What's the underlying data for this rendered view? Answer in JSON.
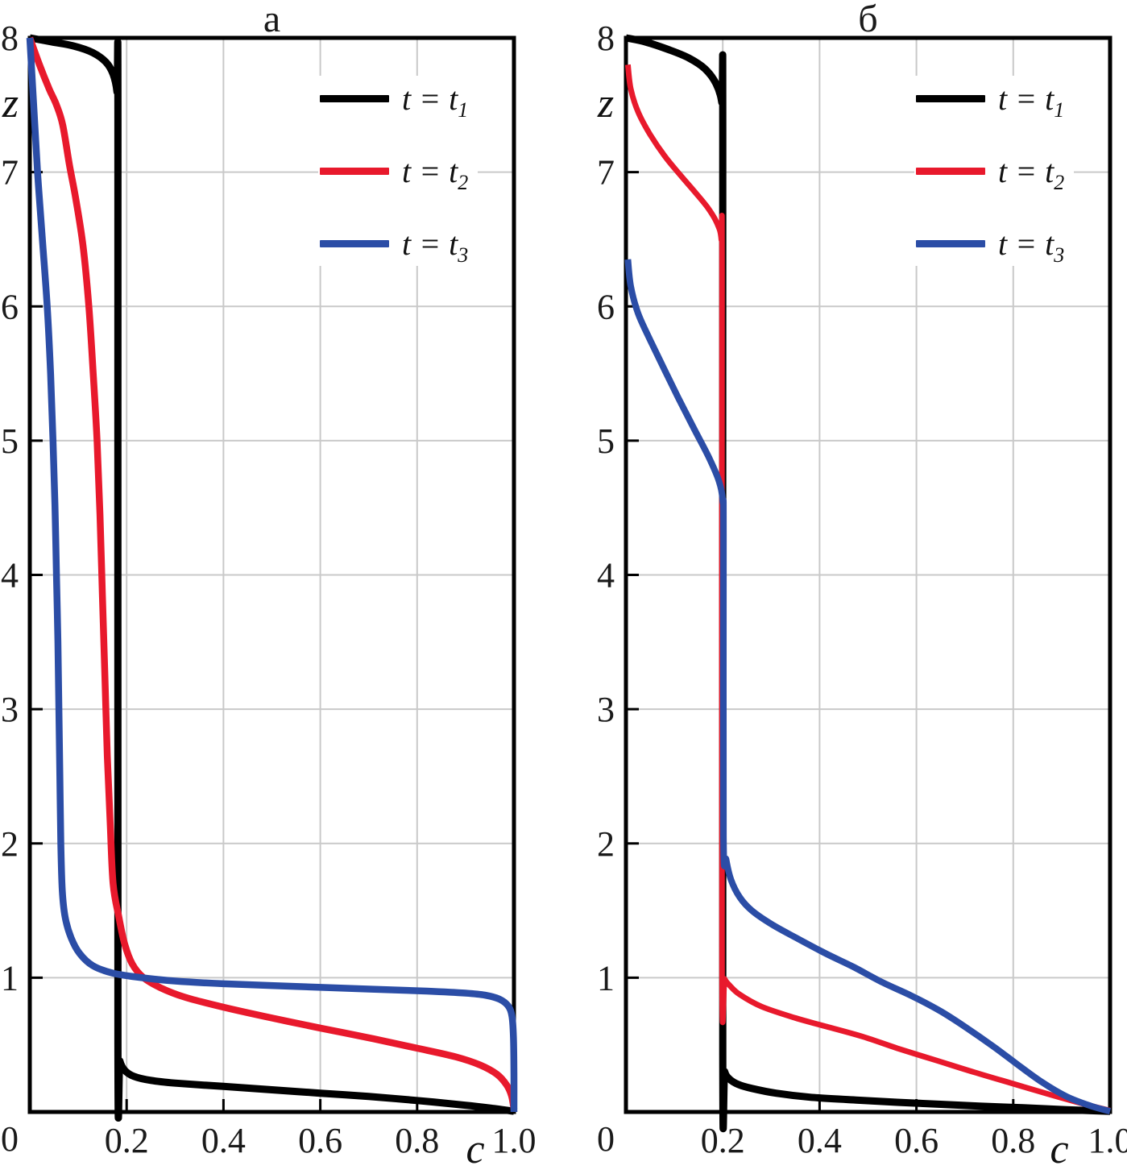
{
  "colors": {
    "black": "#000000",
    "red": "#e8192c",
    "blue": "#2b4da6",
    "grid": "#c9c9c9",
    "frame": "#000000",
    "background": "#ffffff"
  },
  "plots": [
    {
      "title": "а",
      "x_axis_label": "c",
      "y_axis_label": "z",
      "origin_label": "0",
      "x_ticks": [
        {
          "value": 0.2,
          "label": "0.2"
        },
        {
          "value": 0.4,
          "label": "0.4"
        },
        {
          "value": 0.6,
          "label": "0.6"
        },
        {
          "value": 0.8,
          "label": "0.8"
        },
        {
          "value": 1.0,
          "label": "1.0"
        }
      ],
      "y_ticks": [
        {
          "value": 8,
          "label": "8"
        },
        {
          "value": 7,
          "label": "7"
        },
        {
          "value": 6,
          "label": "6"
        },
        {
          "value": 5,
          "label": "5"
        },
        {
          "value": 4,
          "label": "4"
        },
        {
          "value": 3,
          "label": "3"
        },
        {
          "value": 2,
          "label": "2"
        },
        {
          "value": 1,
          "label": "1"
        }
      ],
      "legend": [
        {
          "label_prefix": "t = t",
          "label_sub": "1",
          "color": "#000000"
        },
        {
          "label_prefix": "t = t",
          "label_sub": "2",
          "color": "#e8192c"
        },
        {
          "label_prefix": "t = t",
          "label_sub": "3",
          "color": "#2b4da6"
        }
      ]
    },
    {
      "title": "б",
      "x_axis_label": "c",
      "y_axis_label": "z",
      "origin_label": "0",
      "x_ticks": [
        {
          "value": 0.2,
          "label": "0.2"
        },
        {
          "value": 0.4,
          "label": "0.4"
        },
        {
          "value": 0.6,
          "label": "0.6"
        },
        {
          "value": 0.8,
          "label": "0.8"
        },
        {
          "value": 1.0,
          "label": "1.0"
        }
      ],
      "y_ticks": [
        {
          "value": 8,
          "label": "8"
        },
        {
          "value": 7,
          "label": "7"
        },
        {
          "value": 6,
          "label": "6"
        },
        {
          "value": 5,
          "label": "5"
        },
        {
          "value": 4,
          "label": "4"
        },
        {
          "value": 3,
          "label": "3"
        },
        {
          "value": 2,
          "label": "2"
        },
        {
          "value": 1,
          "label": "1"
        }
      ],
      "legend": [
        {
          "label_prefix": "t = t",
          "label_sub": "1",
          "color": "#000000"
        },
        {
          "label_prefix": "t = t",
          "label_sub": "2",
          "color": "#e8192c"
        },
        {
          "label_prefix": "t = t",
          "label_sub": "3",
          "color": "#2b4da6"
        }
      ]
    }
  ],
  "chart_data": [
    {
      "type": "line",
      "title": "а",
      "xlabel": "c",
      "ylabel": "z",
      "xlim": [
        0,
        1.0
      ],
      "ylim": [
        0,
        8
      ],
      "x_tick_values": [
        0.2,
        0.4,
        0.6,
        0.8,
        1.0
      ],
      "y_tick_values": [
        0,
        1,
        2,
        3,
        4,
        5,
        6,
        7,
        8
      ],
      "grid": true,
      "legend_position": "upper right",
      "series": [
        {
          "name": "t = t₁",
          "color": "#000000",
          "points": [
            [
              0,
              8
            ],
            [
              0.045,
              7.97
            ],
            [
              0.09,
              7.94
            ],
            [
              0.13,
              7.89
            ],
            [
              0.157,
              7.82
            ],
            [
              0.172,
              7.73
            ],
            [
              0.18,
              7.6
            ],
            [
              0.182,
              7.4
            ],
            [
              0.182,
              0.5
            ],
            [
              0.186,
              0.38
            ],
            [
              0.196,
              0.31
            ],
            [
              0.215,
              0.265
            ],
            [
              0.25,
              0.235
            ],
            [
              0.3,
              0.215
            ],
            [
              0.4,
              0.19
            ],
            [
              0.5,
              0.165
            ],
            [
              0.6,
              0.14
            ],
            [
              0.7,
              0.115
            ],
            [
              0.8,
              0.085
            ],
            [
              0.9,
              0.05
            ],
            [
              0.96,
              0.025
            ],
            [
              1.0,
              0.005
            ]
          ]
        },
        {
          "name": "t = t₂",
          "color": "#e8192c",
          "points": [
            [
              0,
              8
            ],
            [
              0.02,
              7.8
            ],
            [
              0.04,
              7.62
            ],
            [
              0.055,
              7.5
            ],
            [
              0.068,
              7.35
            ],
            [
              0.082,
              7.05
            ],
            [
              0.095,
              6.8
            ],
            [
              0.11,
              6.45
            ],
            [
              0.122,
              6.0
            ],
            [
              0.131,
              5.5
            ],
            [
              0.139,
              5.0
            ],
            [
              0.145,
              4.45
            ],
            [
              0.15,
              3.85
            ],
            [
              0.155,
              3.25
            ],
            [
              0.16,
              2.65
            ],
            [
              0.166,
              2.15
            ],
            [
              0.172,
              1.7
            ],
            [
              0.184,
              1.45
            ],
            [
              0.196,
              1.25
            ],
            [
              0.212,
              1.1
            ],
            [
              0.235,
              1.0
            ],
            [
              0.27,
              0.925
            ],
            [
              0.32,
              0.855
            ],
            [
              0.4,
              0.78
            ],
            [
              0.5,
              0.7
            ],
            [
              0.6,
              0.625
            ],
            [
              0.71,
              0.545
            ],
            [
              0.8,
              0.475
            ],
            [
              0.88,
              0.41
            ],
            [
              0.93,
              0.35
            ],
            [
              0.965,
              0.28
            ],
            [
              0.985,
              0.2
            ],
            [
              0.995,
              0.12
            ],
            [
              1.0,
              0.02
            ]
          ]
        },
        {
          "name": "t = t₃",
          "color": "#2b4da6",
          "points": [
            [
              0,
              8
            ],
            [
              0.008,
              7.5
            ],
            [
              0.016,
              7.0
            ],
            [
              0.026,
              6.5
            ],
            [
              0.036,
              6.0
            ],
            [
              0.043,
              5.5
            ],
            [
              0.048,
              5.0
            ],
            [
              0.052,
              4.5
            ],
            [
              0.055,
              4.0
            ],
            [
              0.058,
              3.5
            ],
            [
              0.06,
              3.0
            ],
            [
              0.062,
              2.5
            ],
            [
              0.064,
              2.0
            ],
            [
              0.067,
              1.65
            ],
            [
              0.073,
              1.45
            ],
            [
              0.085,
              1.3
            ],
            [
              0.103,
              1.18
            ],
            [
              0.13,
              1.09
            ],
            [
              0.17,
              1.035
            ],
            [
              0.22,
              1.005
            ],
            [
              0.3,
              0.975
            ],
            [
              0.4,
              0.955
            ],
            [
              0.55,
              0.935
            ],
            [
              0.7,
              0.915
            ],
            [
              0.82,
              0.9
            ],
            [
              0.9,
              0.885
            ],
            [
              0.94,
              0.87
            ],
            [
              0.97,
              0.84
            ],
            [
              0.988,
              0.79
            ],
            [
              0.996,
              0.71
            ],
            [
              0.999,
              0.55
            ],
            [
              1.0,
              0.28
            ],
            [
              1.0,
              0.0
            ]
          ]
        }
      ]
    },
    {
      "type": "line",
      "title": "б",
      "xlabel": "c",
      "ylabel": "z",
      "xlim": [
        0,
        1.0
      ],
      "ylim": [
        0,
        8
      ],
      "x_tick_values": [
        0.2,
        0.4,
        0.6,
        0.8,
        1.0
      ],
      "y_tick_values": [
        0,
        1,
        2,
        3,
        4,
        5,
        6,
        7,
        8
      ],
      "grid": true,
      "legend_position": "upper right",
      "series": [
        {
          "name": "t = t₁",
          "color": "#000000",
          "points": [
            [
              0,
              8
            ],
            [
              0.04,
              7.97
            ],
            [
              0.09,
              7.91
            ],
            [
              0.13,
              7.85
            ],
            [
              0.163,
              7.77
            ],
            [
              0.186,
              7.66
            ],
            [
              0.198,
              7.52
            ],
            [
              0.2,
              7.3
            ],
            [
              0.2,
              0.42
            ],
            [
              0.204,
              0.3
            ],
            [
              0.214,
              0.245
            ],
            [
              0.232,
              0.205
            ],
            [
              0.26,
              0.175
            ],
            [
              0.31,
              0.14
            ],
            [
              0.38,
              0.11
            ],
            [
              0.47,
              0.09
            ],
            [
              0.56,
              0.072
            ],
            [
              0.65,
              0.057
            ],
            [
              0.73,
              0.044
            ],
            [
              0.82,
              0.031
            ],
            [
              0.91,
              0.017
            ],
            [
              1.0,
              0.004
            ]
          ]
        },
        {
          "name": "t = t₂",
          "color": "#e8192c",
          "points": [
            [
              0.004,
              7.8
            ],
            [
              0.01,
              7.62
            ],
            [
              0.025,
              7.45
            ],
            [
              0.05,
              7.28
            ],
            [
              0.08,
              7.12
            ],
            [
              0.112,
              6.98
            ],
            [
              0.143,
              6.85
            ],
            [
              0.17,
              6.73
            ],
            [
              0.188,
              6.62
            ],
            [
              0.197,
              6.5
            ],
            [
              0.1985,
              6.2
            ],
            [
              0.1985,
              1.07
            ],
            [
              0.204,
              0.99
            ],
            [
              0.215,
              0.94
            ],
            [
              0.235,
              0.875
            ],
            [
              0.28,
              0.785
            ],
            [
              0.35,
              0.7
            ],
            [
              0.41,
              0.64
            ],
            [
              0.49,
              0.56
            ],
            [
              0.56,
              0.475
            ],
            [
              0.64,
              0.385
            ],
            [
              0.72,
              0.295
            ],
            [
              0.8,
              0.21
            ],
            [
              0.88,
              0.125
            ],
            [
              0.95,
              0.055
            ],
            [
              1.0,
              0.01
            ]
          ]
        },
        {
          "name": "t = t₃",
          "color": "#2b4da6",
          "points": [
            [
              0.004,
              6.35
            ],
            [
              0.01,
              6.15
            ],
            [
              0.025,
              5.95
            ],
            [
              0.05,
              5.75
            ],
            [
              0.078,
              5.54
            ],
            [
              0.108,
              5.32
            ],
            [
              0.142,
              5.08
            ],
            [
              0.172,
              4.87
            ],
            [
              0.192,
              4.7
            ],
            [
              0.2,
              4.55
            ],
            [
              0.2015,
              4.3
            ],
            [
              0.2015,
              2.05
            ],
            [
              0.207,
              1.88
            ],
            [
              0.217,
              1.73
            ],
            [
              0.235,
              1.6
            ],
            [
              0.26,
              1.5
            ],
            [
              0.3,
              1.4
            ],
            [
              0.35,
              1.3
            ],
            [
              0.41,
              1.185
            ],
            [
              0.47,
              1.08
            ],
            [
              0.53,
              0.965
            ],
            [
              0.59,
              0.865
            ],
            [
              0.65,
              0.75
            ],
            [
              0.7,
              0.635
            ],
            [
              0.76,
              0.485
            ],
            [
              0.81,
              0.35
            ],
            [
              0.86,
              0.22
            ],
            [
              0.91,
              0.115
            ],
            [
              0.96,
              0.045
            ],
            [
              1.0,
              0.005
            ]
          ]
        }
      ]
    }
  ]
}
